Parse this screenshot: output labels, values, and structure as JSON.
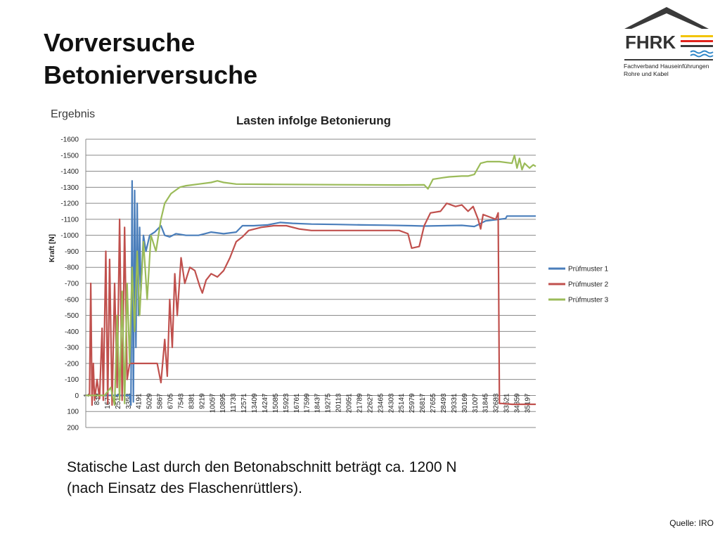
{
  "slide": {
    "title_line1": "Vorversuche",
    "title_line2": "Betonierversuche",
    "section_label": "Ergebnis",
    "caption_line1": "Statische Last durch den Betonabschnitt beträgt ca. 1200 N",
    "caption_line2": "(nach Einsatz des Flaschenrüttlers).",
    "source": "Quelle: IRO"
  },
  "logo": {
    "text": "FHRK",
    "subtitle_line1": "Fachverband Hauseinführungen",
    "subtitle_line2": "Rohre und Kabel",
    "colors": {
      "roof": "#3a3a3a",
      "text": "#333333",
      "stripes": [
        "#f2c400",
        "#e0231c",
        "#2e86c8",
        "#2e86c8"
      ]
    }
  },
  "chart_data": {
    "type": "line",
    "title": "Lasten infolge Betonierung",
    "ylabel": "Kraft [N]",
    "ylim": [
      200,
      -1600
    ],
    "y_axis_inverted": true,
    "y_ticks": [
      -1600,
      -1500,
      -1400,
      -1300,
      -1200,
      -1100,
      -1000,
      -900,
      -800,
      -700,
      -600,
      -500,
      -400,
      -300,
      -200,
      -100,
      0,
      100,
      200
    ],
    "xlim": [
      1,
      35900
    ],
    "x_ticks": [
      1,
      839,
      1677,
      2515,
      3353,
      4191,
      5029,
      5867,
      6705,
      7543,
      8381,
      9219,
      10057,
      10895,
      11733,
      12571,
      13409,
      14247,
      15085,
      15923,
      16761,
      17599,
      18437,
      19275,
      20113,
      20951,
      21789,
      22627,
      23465,
      24303,
      25141,
      25979,
      26817,
      27655,
      28493,
      29331,
      30169,
      31007,
      31845,
      32683,
      33521,
      34359,
      35197
    ],
    "grid": true,
    "legend_position": "right",
    "series": [
      {
        "name": "Prüfmuster 1",
        "color": "#4a7ebb",
        "points": [
          [
            1,
            0
          ],
          [
            3500,
            0
          ],
          [
            3600,
            60
          ],
          [
            3700,
            -1340
          ],
          [
            3800,
            40
          ],
          [
            3900,
            -1280
          ],
          [
            4000,
            -300
          ],
          [
            4100,
            -1200
          ],
          [
            4200,
            -500
          ],
          [
            4300,
            -1050
          ],
          [
            4400,
            -650
          ],
          [
            4600,
            -1000
          ],
          [
            4800,
            -900
          ],
          [
            5100,
            -1000
          ],
          [
            5500,
            -1020
          ],
          [
            6000,
            -1060
          ],
          [
            6300,
            -1000
          ],
          [
            6700,
            -990
          ],
          [
            7200,
            -1010
          ],
          [
            8000,
            -1000
          ],
          [
            9000,
            -1000
          ],
          [
            9500,
            -1010
          ],
          [
            10000,
            -1020
          ],
          [
            11000,
            -1010
          ],
          [
            12000,
            -1020
          ],
          [
            12500,
            -1060
          ],
          [
            13400,
            -1060
          ],
          [
            14500,
            -1065
          ],
          [
            15500,
            -1080
          ],
          [
            16500,
            -1075
          ],
          [
            18000,
            -1070
          ],
          [
            20000,
            -1068
          ],
          [
            22000,
            -1065
          ],
          [
            24000,
            -1063
          ],
          [
            26000,
            -1060
          ],
          [
            27000,
            -1058
          ],
          [
            28500,
            -1060
          ],
          [
            30000,
            -1062
          ],
          [
            31000,
            -1055
          ],
          [
            31400,
            -1070
          ],
          [
            31900,
            -1090
          ],
          [
            33000,
            -1100
          ],
          [
            33500,
            -1105
          ],
          [
            33600,
            -1120
          ],
          [
            35900,
            -1120
          ]
        ]
      },
      {
        "name": "Prüfmuster 2",
        "color": "#c0504d",
        "points": [
          [
            1,
            0
          ],
          [
            300,
            0
          ],
          [
            400,
            -700
          ],
          [
            500,
            60
          ],
          [
            600,
            -200
          ],
          [
            700,
            30
          ],
          [
            900,
            -100
          ],
          [
            1100,
            20
          ],
          [
            1300,
            -420
          ],
          [
            1400,
            30
          ],
          [
            1600,
            -900
          ],
          [
            1750,
            50
          ],
          [
            1900,
            -850
          ],
          [
            2100,
            60
          ],
          [
            2300,
            -700
          ],
          [
            2500,
            -50
          ],
          [
            2700,
            -1100
          ],
          [
            2900,
            30
          ],
          [
            3100,
            -1050
          ],
          [
            3300,
            -100
          ],
          [
            3500,
            -200
          ],
          [
            4200,
            -200
          ],
          [
            5000,
            -200
          ],
          [
            5700,
            -200
          ],
          [
            6000,
            -80
          ],
          [
            6300,
            -350
          ],
          [
            6500,
            -120
          ],
          [
            6700,
            -600
          ],
          [
            6900,
            -300
          ],
          [
            7100,
            -760
          ],
          [
            7300,
            -500
          ],
          [
            7600,
            -860
          ],
          [
            7900,
            -700
          ],
          [
            8300,
            -800
          ],
          [
            8700,
            -780
          ],
          [
            9100,
            -680
          ],
          [
            9300,
            -640
          ],
          [
            9600,
            -720
          ],
          [
            10000,
            -760
          ],
          [
            10500,
            -740
          ],
          [
            11000,
            -780
          ],
          [
            11500,
            -860
          ],
          [
            12000,
            -960
          ],
          [
            12500,
            -990
          ],
          [
            13000,
            -1030
          ],
          [
            14000,
            -1050
          ],
          [
            15000,
            -1060
          ],
          [
            16000,
            -1060
          ],
          [
            17000,
            -1040
          ],
          [
            18000,
            -1030
          ],
          [
            20000,
            -1030
          ],
          [
            22000,
            -1030
          ],
          [
            25000,
            -1030
          ],
          [
            25700,
            -1010
          ],
          [
            26000,
            -920
          ],
          [
            26600,
            -930
          ],
          [
            27000,
            -1060
          ],
          [
            27500,
            -1140
          ],
          [
            28300,
            -1150
          ],
          [
            28800,
            -1200
          ],
          [
            29500,
            -1180
          ],
          [
            30000,
            -1190
          ],
          [
            30500,
            -1150
          ],
          [
            30900,
            -1180
          ],
          [
            31300,
            -1100
          ],
          [
            31500,
            -1040
          ],
          [
            31700,
            -1130
          ],
          [
            32700,
            -1100
          ],
          [
            32900,
            -1140
          ],
          [
            33000,
            50
          ],
          [
            33200,
            50
          ],
          [
            34000,
            55
          ],
          [
            35900,
            55
          ]
        ]
      },
      {
        "name": "Prüfmuster 3",
        "color": "#9bbb59",
        "points": [
          [
            1,
            0
          ],
          [
            1500,
            0
          ],
          [
            2000,
            -50
          ],
          [
            2300,
            60
          ],
          [
            2500,
            -500
          ],
          [
            2700,
            30
          ],
          [
            2900,
            -650
          ],
          [
            3100,
            50
          ],
          [
            3300,
            -700
          ],
          [
            3500,
            -200
          ],
          [
            3700,
            -800
          ],
          [
            3900,
            -400
          ],
          [
            4100,
            -900
          ],
          [
            4300,
            -500
          ],
          [
            4600,
            -960
          ],
          [
            4900,
            -600
          ],
          [
            5200,
            -1000
          ],
          [
            5600,
            -900
          ],
          [
            6000,
            -1100
          ],
          [
            6300,
            -1200
          ],
          [
            6800,
            -1260
          ],
          [
            7500,
            -1300
          ],
          [
            8000,
            -1310
          ],
          [
            9000,
            -1320
          ],
          [
            10000,
            -1330
          ],
          [
            10500,
            -1340
          ],
          [
            11000,
            -1330
          ],
          [
            12000,
            -1320
          ],
          [
            15000,
            -1318
          ],
          [
            20000,
            -1316
          ],
          [
            25000,
            -1314
          ],
          [
            27000,
            -1315
          ],
          [
            27300,
            -1290
          ],
          [
            27700,
            -1350
          ],
          [
            28500,
            -1360
          ],
          [
            29000,
            -1365
          ],
          [
            30000,
            -1370
          ],
          [
            30500,
            -1370
          ],
          [
            31000,
            -1380
          ],
          [
            31500,
            -1450
          ],
          [
            32000,
            -1460
          ],
          [
            33000,
            -1460
          ],
          [
            34000,
            -1450
          ],
          [
            34200,
            -1500
          ],
          [
            34400,
            -1420
          ],
          [
            34600,
            -1480
          ],
          [
            34800,
            -1410
          ],
          [
            35000,
            -1450
          ],
          [
            35400,
            -1420
          ],
          [
            35700,
            -1440
          ],
          [
            35900,
            -1430
          ]
        ]
      }
    ]
  }
}
